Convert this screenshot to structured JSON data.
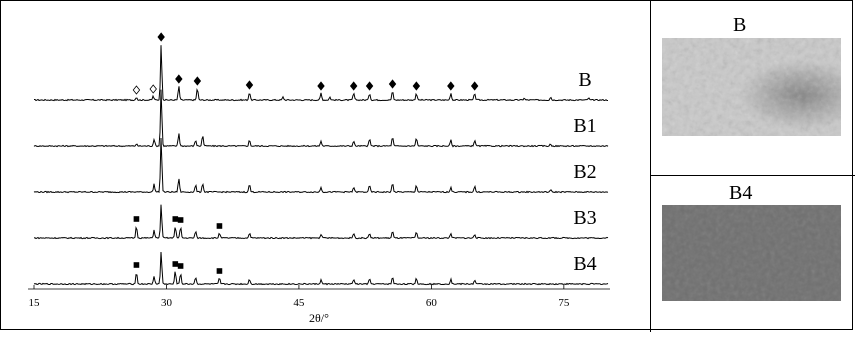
{
  "chart_data": {
    "type": "line",
    "xlabel": "2θ/°",
    "xlim": [
      15,
      80
    ],
    "x_ticks": [
      15,
      30,
      45,
      60,
      75
    ],
    "grid": false,
    "series": [
      {
        "name": "B",
        "offset": 0,
        "peaks": [
          {
            "x": 29.4,
            "h": 56
          },
          {
            "x": 28.5,
            "h": 4
          },
          {
            "x": 26.6,
            "h": 3
          },
          {
            "x": 31.4,
            "h": 14
          },
          {
            "x": 33.5,
            "h": 12
          },
          {
            "x": 39.4,
            "h": 8
          },
          {
            "x": 43.2,
            "h": 3
          },
          {
            "x": 47.5,
            "h": 7
          },
          {
            "x": 48.5,
            "h": 3
          },
          {
            "x": 51.2,
            "h": 7
          },
          {
            "x": 53.0,
            "h": 7
          },
          {
            "x": 55.6,
            "h": 9
          },
          {
            "x": 58.3,
            "h": 7
          },
          {
            "x": 62.2,
            "h": 7
          },
          {
            "x": 64.9,
            "h": 7
          },
          {
            "x": 70.5,
            "h": 2
          },
          {
            "x": 73.5,
            "h": 3
          },
          {
            "x": 77.8,
            "h": 2
          }
        ],
        "markers": [
          {
            "x": 26.6,
            "symbol": "open-diamond"
          },
          {
            "x": 28.5,
            "symbol": "open-diamond"
          },
          {
            "x": 29.4,
            "symbol": "filled-diamond"
          },
          {
            "x": 31.4,
            "symbol": "filled-diamond"
          },
          {
            "x": 33.5,
            "symbol": "filled-diamond"
          },
          {
            "x": 39.4,
            "symbol": "filled-diamond"
          },
          {
            "x": 47.5,
            "symbol": "filled-diamond"
          },
          {
            "x": 51.2,
            "symbol": "filled-diamond"
          },
          {
            "x": 53.0,
            "symbol": "filled-diamond"
          },
          {
            "x": 55.6,
            "symbol": "filled-diamond"
          },
          {
            "x": 58.3,
            "symbol": "filled-diamond"
          },
          {
            "x": 62.2,
            "symbol": "filled-diamond"
          },
          {
            "x": 64.9,
            "symbol": "filled-diamond"
          }
        ]
      },
      {
        "name": "B1",
        "offset": 1,
        "peaks": [
          {
            "x": 29.4,
            "h": 58
          },
          {
            "x": 28.6,
            "h": 7
          },
          {
            "x": 26.6,
            "h": 2
          },
          {
            "x": 31.4,
            "h": 13
          },
          {
            "x": 33.3,
            "h": 6
          },
          {
            "x": 34.1,
            "h": 11
          },
          {
            "x": 39.4,
            "h": 6
          },
          {
            "x": 47.5,
            "h": 5
          },
          {
            "x": 51.2,
            "h": 5
          },
          {
            "x": 53.0,
            "h": 7
          },
          {
            "x": 55.6,
            "h": 9
          },
          {
            "x": 58.3,
            "h": 8
          },
          {
            "x": 62.2,
            "h": 6
          },
          {
            "x": 64.9,
            "h": 6
          },
          {
            "x": 73.5,
            "h": 2
          }
        ],
        "markers": []
      },
      {
        "name": "B2",
        "offset": 2,
        "peaks": [
          {
            "x": 29.4,
            "h": 56
          },
          {
            "x": 28.6,
            "h": 8
          },
          {
            "x": 31.4,
            "h": 14
          },
          {
            "x": 33.3,
            "h": 7
          },
          {
            "x": 34.1,
            "h": 9
          },
          {
            "x": 39.4,
            "h": 8
          },
          {
            "x": 47.5,
            "h": 5
          },
          {
            "x": 51.2,
            "h": 5
          },
          {
            "x": 53.0,
            "h": 7
          },
          {
            "x": 55.6,
            "h": 9
          },
          {
            "x": 58.3,
            "h": 7
          },
          {
            "x": 62.2,
            "h": 5
          },
          {
            "x": 64.9,
            "h": 6
          },
          {
            "x": 73.5,
            "h": 2
          }
        ],
        "markers": []
      },
      {
        "name": "B3",
        "offset": 3,
        "peaks": [
          {
            "x": 29.4,
            "h": 34
          },
          {
            "x": 26.6,
            "h": 12
          },
          {
            "x": 28.6,
            "h": 8
          },
          {
            "x": 31.0,
            "h": 12
          },
          {
            "x": 31.6,
            "h": 11
          },
          {
            "x": 33.3,
            "h": 7
          },
          {
            "x": 36.0,
            "h": 5
          },
          {
            "x": 39.4,
            "h": 5
          },
          {
            "x": 47.5,
            "h": 4
          },
          {
            "x": 51.2,
            "h": 5
          },
          {
            "x": 53.0,
            "h": 5
          },
          {
            "x": 55.6,
            "h": 7
          },
          {
            "x": 58.3,
            "h": 6
          },
          {
            "x": 62.2,
            "h": 5
          },
          {
            "x": 64.9,
            "h": 4
          }
        ],
        "markers": [
          {
            "x": 26.6,
            "symbol": "filled-square"
          },
          {
            "x": 31.0,
            "symbol": "filled-square"
          },
          {
            "x": 31.6,
            "symbol": "filled-square"
          },
          {
            "x": 36.0,
            "symbol": "filled-square"
          }
        ]
      },
      {
        "name": "B4",
        "offset": 4,
        "peaks": [
          {
            "x": 29.4,
            "h": 33
          },
          {
            "x": 26.6,
            "h": 12
          },
          {
            "x": 28.6,
            "h": 8
          },
          {
            "x": 31.0,
            "h": 13
          },
          {
            "x": 31.6,
            "h": 11
          },
          {
            "x": 33.3,
            "h": 7
          },
          {
            "x": 36.0,
            "h": 6
          },
          {
            "x": 39.4,
            "h": 5
          },
          {
            "x": 47.5,
            "h": 4
          },
          {
            "x": 51.2,
            "h": 5
          },
          {
            "x": 53.0,
            "h": 5
          },
          {
            "x": 55.6,
            "h": 7
          },
          {
            "x": 58.3,
            "h": 6
          },
          {
            "x": 62.2,
            "h": 5
          },
          {
            "x": 64.9,
            "h": 4
          }
        ],
        "markers": [
          {
            "x": 26.6,
            "symbol": "filled-square"
          },
          {
            "x": 31.0,
            "symbol": "filled-square"
          },
          {
            "x": 31.6,
            "symbol": "filled-square"
          },
          {
            "x": 36.0,
            "symbol": "filled-square"
          }
        ]
      }
    ]
  },
  "photos": [
    {
      "label": "B",
      "tone": "light-grey-mottled",
      "colors": [
        "#c9c9c9",
        "#a8a8a8",
        "#8d8d8d"
      ]
    },
    {
      "label": "B4",
      "tone": "dark-grey",
      "colors": [
        "#6f6f6f",
        "#686868",
        "#747474"
      ]
    }
  ]
}
